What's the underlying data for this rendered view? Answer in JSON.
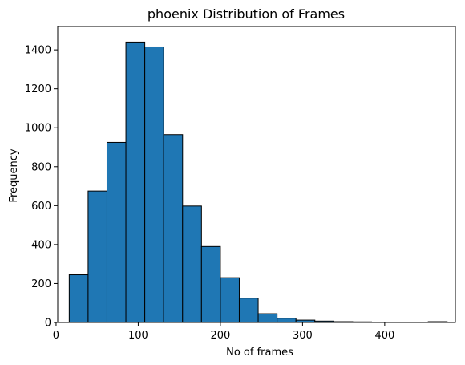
{
  "chart_data": {
    "type": "bar",
    "title": "phoenix Distribution of Frames",
    "xlabel": "No of frames",
    "ylabel": "Frequency",
    "xlim": [
      2,
      486
    ],
    "ylim": [
      0,
      1520
    ],
    "grid": false,
    "bar_color": "#1f77b4",
    "edge_color": "#000000",
    "x_ticks": [
      0,
      100,
      200,
      300,
      400
    ],
    "y_ticks": [
      0,
      200,
      400,
      600,
      800,
      1000,
      1200,
      1400
    ],
    "bins": [
      {
        "x0": 16,
        "x1": 39,
        "value": 245
      },
      {
        "x0": 39,
        "x1": 62,
        "value": 675
      },
      {
        "x0": 62,
        "x1": 85,
        "value": 925
      },
      {
        "x0": 85,
        "x1": 108,
        "value": 1440
      },
      {
        "x0": 108,
        "x1": 131,
        "value": 1415
      },
      {
        "x0": 131,
        "x1": 154,
        "value": 965
      },
      {
        "x0": 154,
        "x1": 177,
        "value": 598
      },
      {
        "x0": 177,
        "x1": 200,
        "value": 390
      },
      {
        "x0": 200,
        "x1": 223,
        "value": 230
      },
      {
        "x0": 223,
        "x1": 246,
        "value": 125
      },
      {
        "x0": 246,
        "x1": 269,
        "value": 45
      },
      {
        "x0": 269,
        "x1": 292,
        "value": 22
      },
      {
        "x0": 292,
        "x1": 315,
        "value": 12
      },
      {
        "x0": 315,
        "x1": 338,
        "value": 7
      },
      {
        "x0": 338,
        "x1": 361,
        "value": 4
      },
      {
        "x0": 361,
        "x1": 384,
        "value": 3
      },
      {
        "x0": 384,
        "x1": 407,
        "value": 2
      },
      {
        "x0": 407,
        "x1": 430,
        "value": 0
      },
      {
        "x0": 430,
        "x1": 453,
        "value": 0
      },
      {
        "x0": 453,
        "x1": 476,
        "value": 4
      }
    ]
  }
}
